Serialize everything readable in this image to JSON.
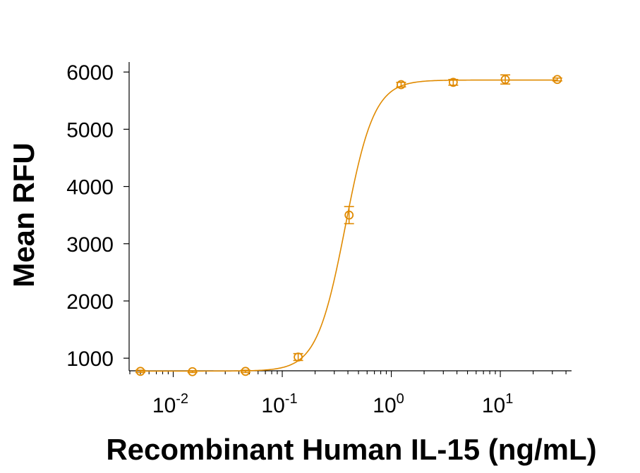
{
  "chart_data": {
    "type": "scatter",
    "title": "",
    "xlabel": "Recombinant Human IL-15 (ng/mL)",
    "ylabel": "Mean RFU",
    "xscale": "log",
    "xlim": [
      0.004,
      45
    ],
    "ylim": [
      780,
      6150
    ],
    "y_ticks": [
      1000,
      2000,
      3000,
      4000,
      5000,
      6000
    ],
    "y_tick_labels": [
      "1000",
      "2000",
      "3000",
      "4000",
      "5000",
      "6000"
    ],
    "x_major_ticks": [
      0.01,
      0.1,
      1,
      10
    ],
    "x_tick_labels": [
      {
        "base": "10",
        "exp": "-2"
      },
      {
        "base": "10",
        "exp": "-1"
      },
      {
        "base": "10",
        "exp": "0"
      },
      {
        "base": "10",
        "exp": "1"
      }
    ],
    "grid": false,
    "legend": "none",
    "color": "#E08A00",
    "series": [
      {
        "x": [
          0.005,
          0.015,
          0.046,
          0.14,
          0.41,
          1.23,
          3.7,
          11.1,
          33.3
        ],
        "y": [
          770,
          765,
          770,
          1020,
          3500,
          5780,
          5820,
          5870,
          5870
        ],
        "err": [
          20,
          15,
          20,
          60,
          150,
          40,
          50,
          80,
          25
        ]
      }
    ],
    "fit": {
      "type": "4PL",
      "bottom": 775,
      "top": 5860,
      "ec50": 0.38,
      "hill": 3.3
    }
  }
}
